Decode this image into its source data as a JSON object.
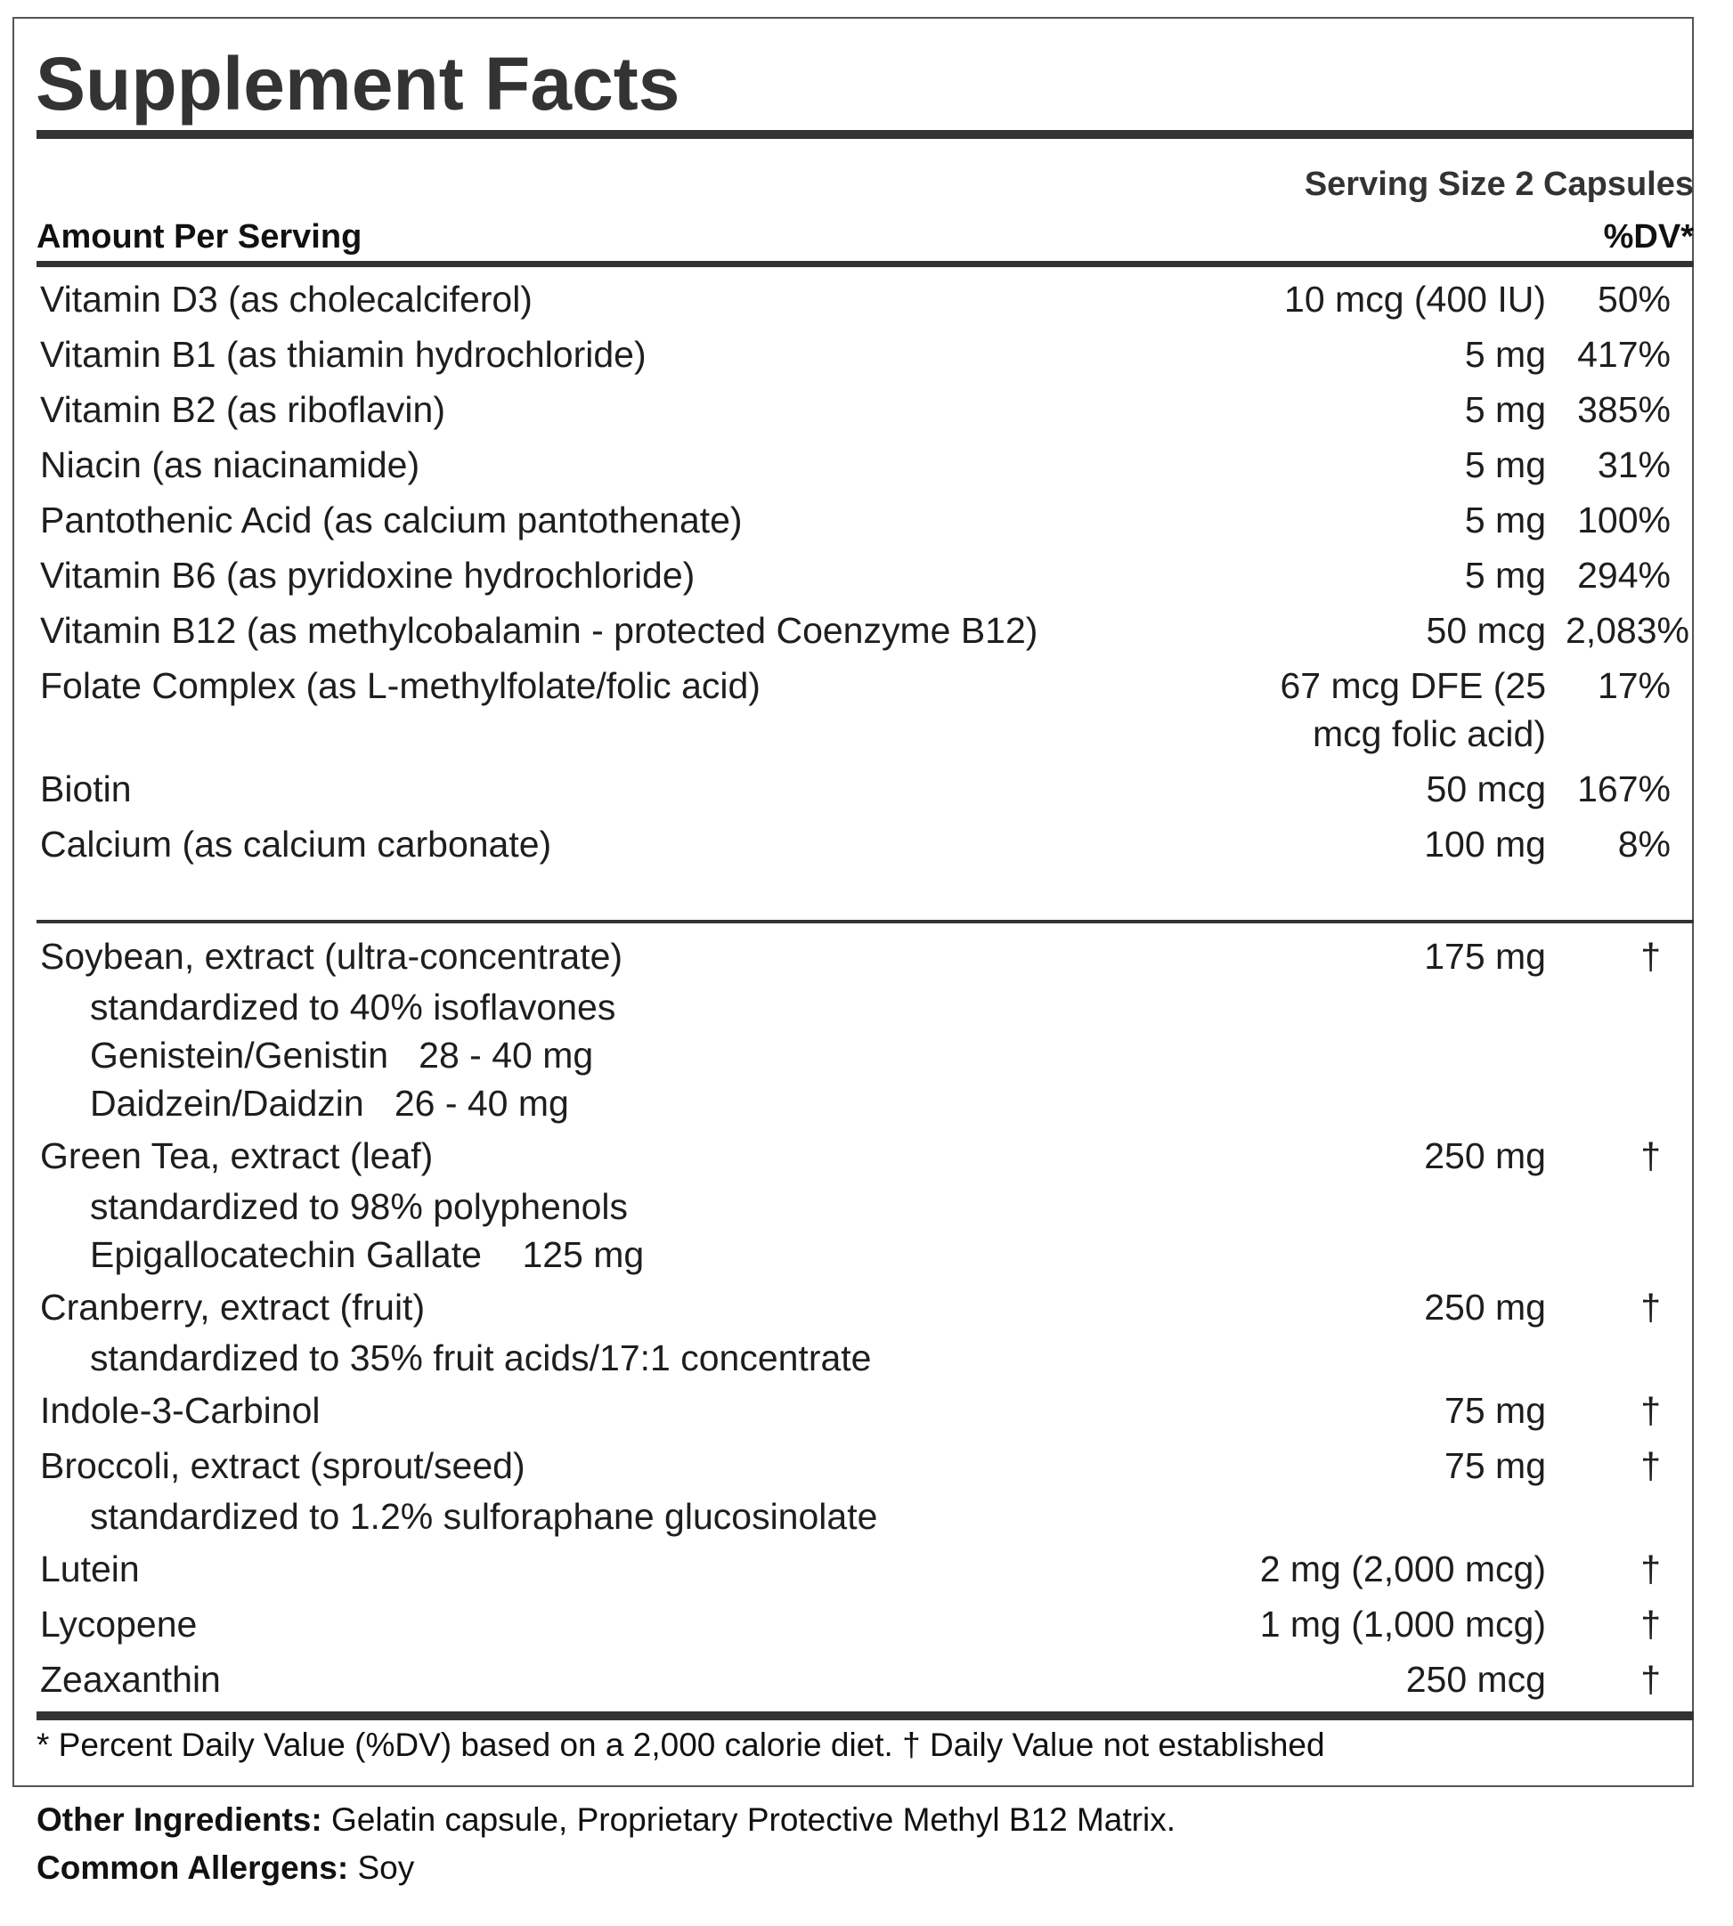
{
  "title": "Supplement Facts",
  "serving_size": "Serving Size 2 Capsules",
  "amount_per_serving": "Amount Per Serving",
  "dv_header": "%DV*",
  "vitamins": [
    {
      "name": "Vitamin D3 (as cholecalciferol)",
      "amount": "10 mcg (400 IU)",
      "dv": "50%"
    },
    {
      "name": "Vitamin B1 (as thiamin hydrochloride)",
      "amount": "5 mg",
      "dv": "417%"
    },
    {
      "name": "Vitamin B2 (as riboflavin)",
      "amount": "5 mg",
      "dv": "385%"
    },
    {
      "name": "Niacin (as niacinamide)",
      "amount": "5 mg",
      "dv": "31%"
    },
    {
      "name": "Pantothenic Acid (as calcium pantothenate)",
      "amount": "5 mg",
      "dv": "100%"
    },
    {
      "name": "Vitamin B6 (as pyridoxine hydrochloride)",
      "amount": "5 mg",
      "dv": "294%"
    },
    {
      "name": "Vitamin B12 (as methylcobalamin - protected Coenzyme B12)",
      "amount": "50 mcg",
      "dv": "2,083%"
    },
    {
      "name": "Folate Complex (as L-methylfolate/folic acid)",
      "amount": "67 mcg DFE (25 mcg folic acid)",
      "dv": "17%"
    },
    {
      "name": "Biotin",
      "amount": "50 mcg",
      "dv": "167%"
    },
    {
      "name": "Calcium (as calcium carbonate)",
      "amount": "100 mg",
      "dv": "8%"
    }
  ],
  "botanicals": [
    {
      "name": "Soybean, extract (ultra-concentrate)",
      "amount": "175 mg",
      "dv": "†",
      "sub": [
        "standardized to 40% isoflavones",
        "Genistein/Genistin   28 - 40 mg",
        "Daidzein/Daidzin   26 - 40 mg"
      ]
    },
    {
      "name": "Green Tea, extract (leaf)",
      "amount": "250 mg",
      "dv": "†",
      "sub": [
        "standardized to 98% polyphenols",
        "Epigallocatechin Gallate    125 mg"
      ]
    },
    {
      "name": "Cranberry, extract (fruit)",
      "amount": "250 mg",
      "dv": "†",
      "sub": [
        "standardized to 35% fruit acids/17:1 concentrate"
      ]
    },
    {
      "name": "Indole-3-Carbinol",
      "amount": "75 mg",
      "dv": "†",
      "sub": []
    },
    {
      "name": "Broccoli, extract (sprout/seed)",
      "amount": "75 mg",
      "dv": "†",
      "sub": [
        "standardized to 1.2% sulforaphane glucosinolate"
      ]
    },
    {
      "name": "Lutein",
      "amount": "2 mg (2,000 mcg)",
      "dv": "†",
      "sub": []
    },
    {
      "name": "Lycopene",
      "amount": "1 mg (1,000 mcg)",
      "dv": "†",
      "sub": []
    },
    {
      "name": "Zeaxanthin",
      "amount": "250 mcg",
      "dv": "†",
      "sub": []
    }
  ],
  "footnote": "* Percent Daily Value (%DV) based on a 2,000 calorie diet. † Daily Value not established",
  "other_ingredients": {
    "label": "Other Ingredients:",
    "value": " Gelatin capsule, Proprietary Protective Methyl B12 Matrix."
  },
  "allergens": {
    "label": "Common Allergens:",
    "value": " Soy"
  }
}
